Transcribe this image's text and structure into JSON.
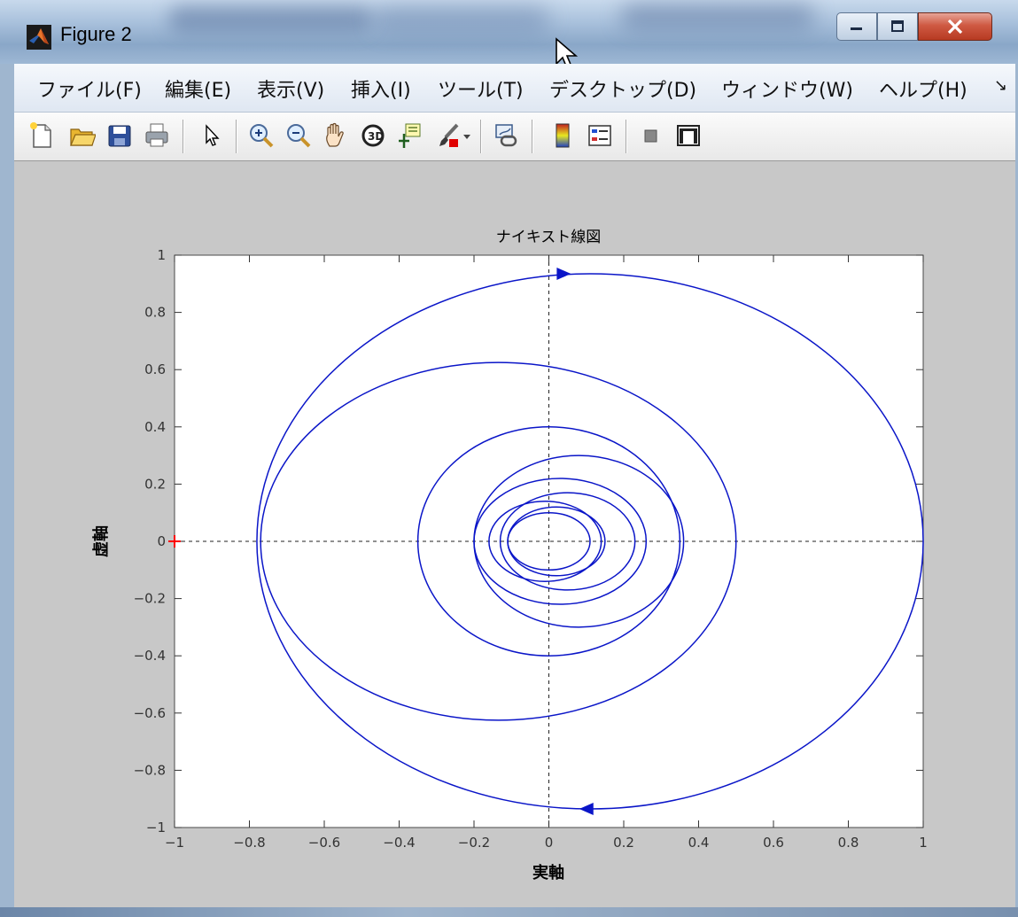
{
  "window": {
    "title": "Figure 2",
    "controls": [
      "minimize",
      "maximize",
      "close"
    ]
  },
  "menu": {
    "items": [
      {
        "label": "ファイル(F)"
      },
      {
        "label": "編集(E)"
      },
      {
        "label": "表示(V)"
      },
      {
        "label": "挿入(I)"
      },
      {
        "label": "ツール(T)"
      },
      {
        "label": "デスクトップ(D)"
      },
      {
        "label": "ウィンドウ(W)"
      },
      {
        "label": "ヘルプ(H)"
      }
    ],
    "more_glyph": "↘"
  },
  "toolbar": {
    "icons": [
      "new-figure-icon",
      "open-file-icon",
      "save-icon",
      "print-icon",
      "edit-plot-arrow-icon",
      "zoom-in-icon",
      "zoom-out-icon",
      "pan-hand-icon",
      "rotate-3d-icon",
      "data-cursor-icon",
      "brush-icon",
      "brush-dropdown-icon",
      "link-plot-icon",
      "colorbar-icon",
      "legend-icon",
      "hide-plot-tools-icon",
      "show-plot-tools-icon"
    ]
  },
  "colors": {
    "curve": "#0a15c8",
    "marker": "#ff0000",
    "figure_bg": "#c8c8c8",
    "axes_bg": "#ffffff"
  },
  "chart_data": {
    "type": "line",
    "title": "ナイキスト線図",
    "xlabel": "実軸",
    "ylabel": "虚軸",
    "xlim": [
      -1,
      1
    ],
    "ylim": [
      -1,
      1
    ],
    "xticks": [
      -1,
      -0.8,
      -0.6,
      -0.4,
      -0.2,
      0,
      0.2,
      0.4,
      0.6,
      0.8,
      1
    ],
    "yticks": [
      -1,
      -0.8,
      -0.6,
      -0.4,
      -0.2,
      0,
      0.2,
      0.4,
      0.6,
      0.8,
      1
    ],
    "xtick_labels": [
      "−1",
      "−0.8",
      "−0.6",
      "−0.4",
      "−0.2",
      "0",
      "0.2",
      "0.4",
      "0.6",
      "0.8",
      "1"
    ],
    "ytick_labels": [
      "−1",
      "−0.8",
      "−0.6",
      "−0.4",
      "−0.2",
      "0",
      "0.2",
      "0.4",
      "0.6",
      "0.8",
      "1"
    ],
    "grid": false,
    "crosshair_dashed": true,
    "critical_point": [
      -1,
      0
    ],
    "loops": [
      {
        "cx": 0.11,
        "cy": 0,
        "rx": 0.89,
        "ry": 0.935
      },
      {
        "cx": -0.135,
        "cy": 0,
        "rx": 0.635,
        "ry": 0.625
      },
      {
        "cx": 0.0,
        "cy": 0,
        "rx": 0.35,
        "ry": 0.4
      },
      {
        "cx": 0.08,
        "cy": 0,
        "rx": 0.28,
        "ry": 0.3
      },
      {
        "cx": 0.03,
        "cy": 0,
        "rx": 0.23,
        "ry": 0.22
      },
      {
        "cx": 0.05,
        "cy": 0,
        "rx": 0.18,
        "ry": 0.17
      },
      {
        "cx": -0.01,
        "cy": 0,
        "rx": 0.15,
        "ry": 0.14
      },
      {
        "cx": 0.02,
        "cy": 0,
        "rx": 0.13,
        "ry": 0.12
      },
      {
        "cx": 0.0,
        "cy": 0,
        "rx": 0.11,
        "ry": 0.1
      }
    ],
    "direction_arrows": [
      {
        "x": 0.04,
        "y": 0.935,
        "dir": "right"
      },
      {
        "x": 0.1,
        "y": -0.935,
        "dir": "left"
      }
    ]
  }
}
